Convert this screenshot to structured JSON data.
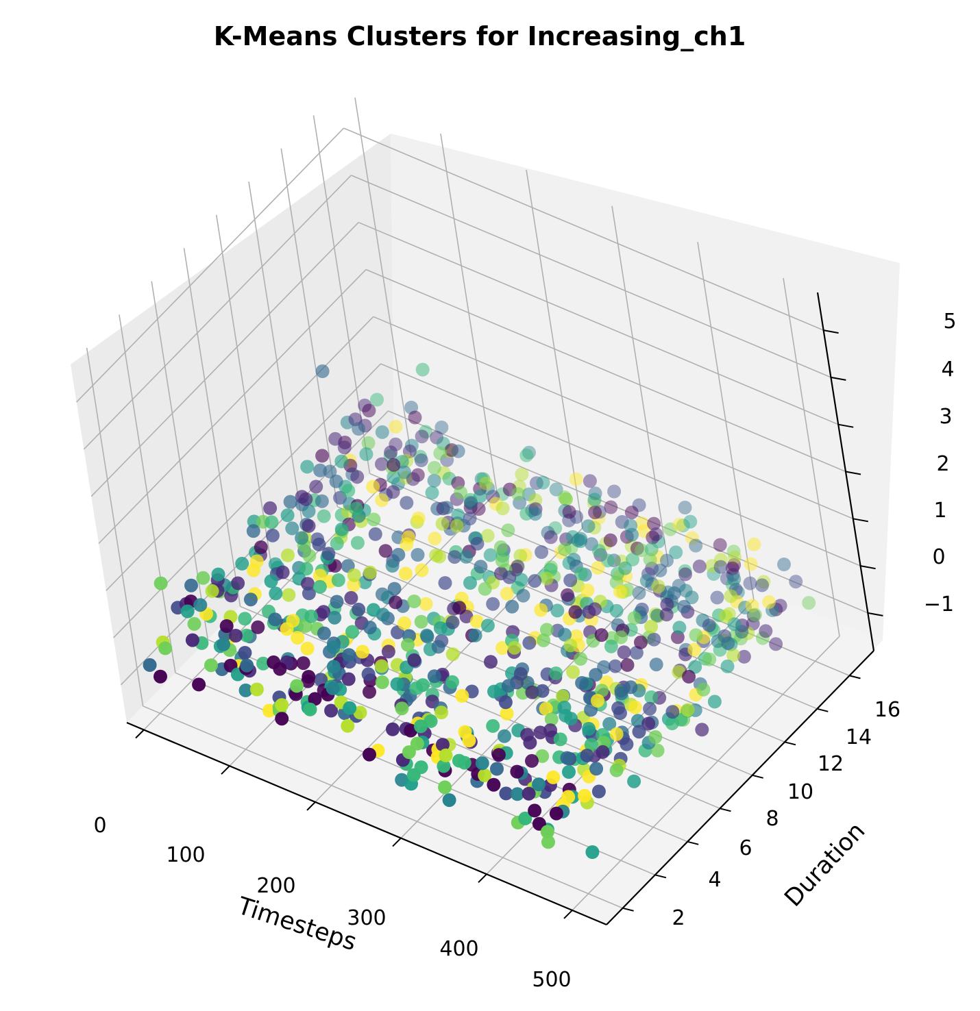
{
  "chart_data": {
    "type": "scatter",
    "projection": "3d",
    "title": "K-Means Clusters for Increasing_ch1",
    "xlabel": "Timesteps",
    "ylabel": "Duration",
    "zlabel": "",
    "xticks": [
      "0",
      "100",
      "200",
      "300",
      "400",
      "500"
    ],
    "yticks": [
      "2",
      "4",
      "6",
      "8",
      "10",
      "12",
      "14",
      "16"
    ],
    "zticks": [
      "−1",
      "0",
      "1",
      "2",
      "3",
      "4",
      "5"
    ],
    "xlim": [
      -20,
      540
    ],
    "ylim": [
      1,
      17.5
    ],
    "zlim": [
      -1.8,
      5.8
    ],
    "grid": true,
    "colormap": "viridis",
    "cluster_colors": [
      "#440154",
      "#482878",
      "#3e4989",
      "#31688e",
      "#26828e",
      "#1f9e89",
      "#35b779",
      "#6ece58",
      "#b5de2b",
      "#fde725"
    ],
    "point_count_approx": 900,
    "sample_points": [
      {
        "x": 480,
        "y": 16,
        "z": 0.1,
        "cluster": 3
      },
      {
        "x": 470,
        "y": 15,
        "z": 0.8,
        "cluster": 9
      },
      {
        "x": 35,
        "y": 12,
        "z": 2.2,
        "cluster": 3
      },
      {
        "x": 90,
        "y": 15,
        "z": 1.6,
        "cluster": 6
      },
      {
        "x": 300,
        "y": 2,
        "z": -1.0,
        "cluster": 5
      },
      {
        "x": 150,
        "y": 3,
        "z": -0.6,
        "cluster": 0
      },
      {
        "x": 60,
        "y": 4,
        "z": 0.0,
        "cluster": 8
      },
      {
        "x": 360,
        "y": 8,
        "z": -0.4,
        "cluster": 1
      },
      {
        "x": 420,
        "y": 12,
        "z": 0.2,
        "cluster": 1
      },
      {
        "x": 250,
        "y": 6,
        "z": -0.9,
        "cluster": 6
      }
    ]
  }
}
